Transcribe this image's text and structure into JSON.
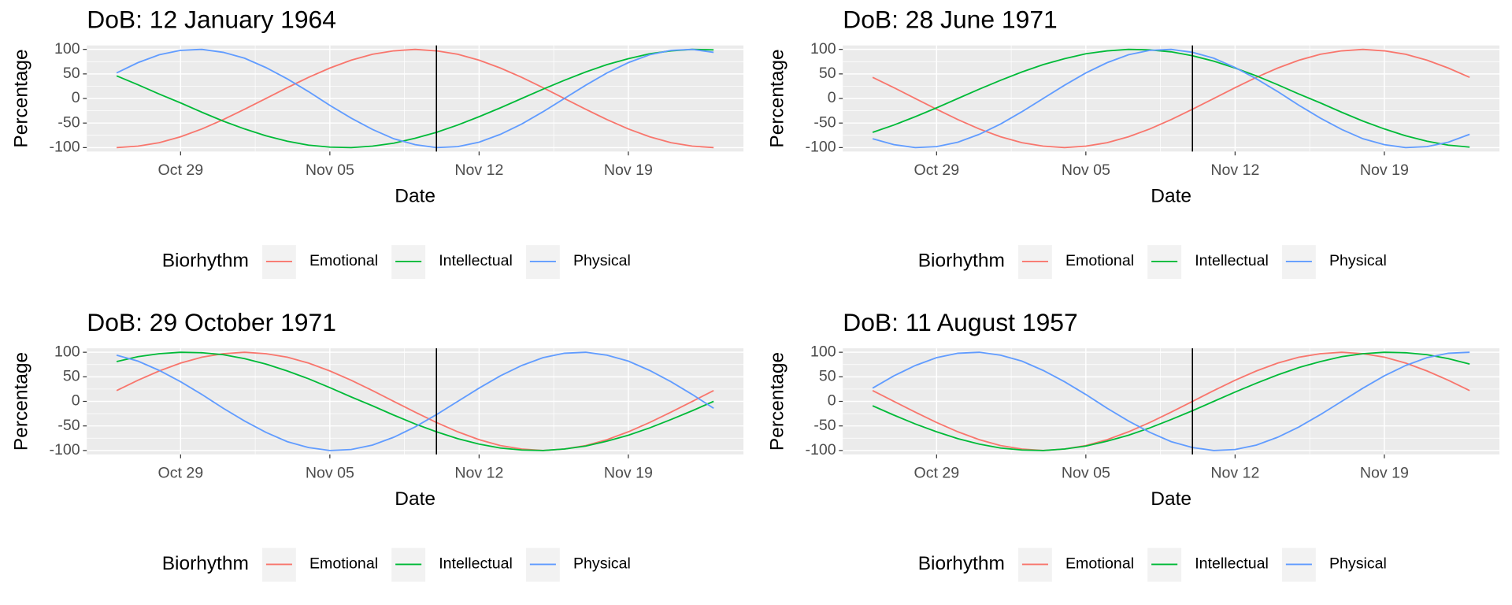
{
  "chart_data": [
    {
      "type": "line",
      "title": "DoB: 12 January 1964",
      "x_label": "Date",
      "y_label": "Percentage",
      "legend_title": "Biorhythm",
      "x": [
        "Oct 26",
        "Oct 27",
        "Oct 28",
        "Oct 29",
        "Oct 30",
        "Oct 31",
        "Nov 01",
        "Nov 02",
        "Nov 03",
        "Nov 04",
        "Nov 05",
        "Nov 06",
        "Nov 07",
        "Nov 08",
        "Nov 09",
        "Nov 10",
        "Nov 11",
        "Nov 12",
        "Nov 13",
        "Nov 14",
        "Nov 15",
        "Nov 16",
        "Nov 17",
        "Nov 18",
        "Nov 19",
        "Nov 20",
        "Nov 21",
        "Nov 22",
        "Nov 23"
      ],
      "xticks": [
        "Oct 29",
        "Nov 05",
        "Nov 12",
        "Nov 19"
      ],
      "vline": "Nov 10",
      "ylim": [
        -108,
        108
      ],
      "yticks": [
        -100,
        -50,
        0,
        50,
        100
      ],
      "grid": true,
      "legend": "bottom",
      "series": [
        {
          "name": "Emotional",
          "color": "#F8766D",
          "values": [
            -100,
            -97,
            -90,
            -78,
            -62,
            -43,
            -22,
            0,
            22,
            43,
            62,
            78,
            90,
            97,
            100,
            97,
            90,
            78,
            62,
            43,
            22,
            0,
            -22,
            -43,
            -62,
            -78,
            -90,
            -97,
            -100
          ]
        },
        {
          "name": "Intellectual",
          "color": "#00BA38",
          "values": [
            46,
            28,
            9,
            -9,
            -28,
            -46,
            -62,
            -76,
            -87,
            -95,
            -99,
            -100,
            -97,
            -91,
            -81,
            -69,
            -54,
            -37,
            -19,
            0,
            19,
            37,
            54,
            69,
            81,
            91,
            97,
            100,
            99
          ]
        },
        {
          "name": "Physical",
          "color": "#619CFF",
          "values": [
            52,
            73,
            89,
            98,
            100,
            94,
            82,
            63,
            40,
            14,
            -14,
            -40,
            -63,
            -82,
            -94,
            -100,
            -98,
            -89,
            -73,
            -52,
            -27,
            0,
            27,
            52,
            73,
            89,
            98,
            100,
            94
          ]
        }
      ]
    },
    {
      "type": "line",
      "title": "DoB: 28 June 1971",
      "x_label": "Date",
      "y_label": "Percentage",
      "legend_title": "Biorhythm",
      "x": [
        "Oct 26",
        "Oct 27",
        "Oct 28",
        "Oct 29",
        "Oct 30",
        "Oct 31",
        "Nov 01",
        "Nov 02",
        "Nov 03",
        "Nov 04",
        "Nov 05",
        "Nov 06",
        "Nov 07",
        "Nov 08",
        "Nov 09",
        "Nov 10",
        "Nov 11",
        "Nov 12",
        "Nov 13",
        "Nov 14",
        "Nov 15",
        "Nov 16",
        "Nov 17",
        "Nov 18",
        "Nov 19",
        "Nov 20",
        "Nov 21",
        "Nov 22",
        "Nov 23"
      ],
      "xticks": [
        "Oct 29",
        "Nov 05",
        "Nov 12",
        "Nov 19"
      ],
      "vline": "Nov 10",
      "ylim": [
        -108,
        108
      ],
      "yticks": [
        -100,
        -50,
        0,
        50,
        100
      ],
      "grid": true,
      "legend": "bottom",
      "series": [
        {
          "name": "Emotional",
          "color": "#F8766D",
          "values": [
            43,
            22,
            0,
            -22,
            -43,
            -62,
            -78,
            -90,
            -97,
            -100,
            -97,
            -90,
            -78,
            -62,
            -43,
            -22,
            0,
            22,
            43,
            62,
            78,
            90,
            97,
            100,
            97,
            90,
            78,
            62,
            43
          ]
        },
        {
          "name": "Intellectual",
          "color": "#00BA38",
          "values": [
            -69,
            -54,
            -37,
            -19,
            0,
            19,
            37,
            54,
            69,
            81,
            91,
            97,
            100,
            99,
            95,
            87,
            76,
            62,
            46,
            28,
            9,
            -9,
            -28,
            -46,
            -62,
            -76,
            -87,
            -95,
            -99
          ]
        },
        {
          "name": "Physical",
          "color": "#619CFF",
          "values": [
            -82,
            -94,
            -100,
            -98,
            -89,
            -73,
            -52,
            -27,
            0,
            27,
            52,
            73,
            89,
            98,
            100,
            94,
            82,
            63,
            40,
            14,
            -14,
            -40,
            -63,
            -82,
            -94,
            -100,
            -98,
            -89,
            -73
          ]
        }
      ]
    },
    {
      "type": "line",
      "title": "DoB: 29 October 1971",
      "x_label": "Date",
      "y_label": "Percentage",
      "legend_title": "Biorhythm",
      "x": [
        "Oct 26",
        "Oct 27",
        "Oct 28",
        "Oct 29",
        "Oct 30",
        "Oct 31",
        "Nov 01",
        "Nov 02",
        "Nov 03",
        "Nov 04",
        "Nov 05",
        "Nov 06",
        "Nov 07",
        "Nov 08",
        "Nov 09",
        "Nov 10",
        "Nov 11",
        "Nov 12",
        "Nov 13",
        "Nov 14",
        "Nov 15",
        "Nov 16",
        "Nov 17",
        "Nov 18",
        "Nov 19",
        "Nov 20",
        "Nov 21",
        "Nov 22",
        "Nov 23"
      ],
      "xticks": [
        "Oct 29",
        "Nov 05",
        "Nov 12",
        "Nov 19"
      ],
      "vline": "Nov 10",
      "ylim": [
        -108,
        108
      ],
      "yticks": [
        -100,
        -50,
        0,
        50,
        100
      ],
      "grid": true,
      "legend": "bottom",
      "series": [
        {
          "name": "Emotional",
          "color": "#F8766D",
          "values": [
            22,
            43,
            62,
            78,
            90,
            97,
            100,
            97,
            90,
            78,
            62,
            43,
            22,
            0,
            -22,
            -43,
            -62,
            -78,
            -90,
            -97,
            -100,
            -97,
            -90,
            -78,
            -62,
            -43,
            -22,
            0,
            22
          ]
        },
        {
          "name": "Intellectual",
          "color": "#00BA38",
          "values": [
            81,
            91,
            97,
            100,
            99,
            95,
            87,
            76,
            62,
            46,
            28,
            9,
            -9,
            -28,
            -46,
            -62,
            -76,
            -87,
            -95,
            -99,
            -100,
            -97,
            -91,
            -81,
            -69,
            -54,
            -37,
            -19,
            0
          ]
        },
        {
          "name": "Physical",
          "color": "#619CFF",
          "values": [
            94,
            82,
            63,
            40,
            14,
            -14,
            -40,
            -63,
            -82,
            -94,
            -100,
            -98,
            -89,
            -73,
            -52,
            -27,
            0,
            27,
            52,
            73,
            89,
            98,
            100,
            94,
            82,
            63,
            40,
            14,
            -14
          ]
        }
      ]
    },
    {
      "type": "line",
      "title": "DoB: 11 August 1957",
      "x_label": "Date",
      "y_label": "Percentage",
      "legend_title": "Biorhythm",
      "x": [
        "Oct 26",
        "Oct 27",
        "Oct 28",
        "Oct 29",
        "Oct 30",
        "Oct 31",
        "Nov 01",
        "Nov 02",
        "Nov 03",
        "Nov 04",
        "Nov 05",
        "Nov 06",
        "Nov 07",
        "Nov 08",
        "Nov 09",
        "Nov 10",
        "Nov 11",
        "Nov 12",
        "Nov 13",
        "Nov 14",
        "Nov 15",
        "Nov 16",
        "Nov 17",
        "Nov 18",
        "Nov 19",
        "Nov 20",
        "Nov 21",
        "Nov 22",
        "Nov 23"
      ],
      "xticks": [
        "Oct 29",
        "Nov 05",
        "Nov 12",
        "Nov 19"
      ],
      "vline": "Nov 10",
      "ylim": [
        -108,
        108
      ],
      "yticks": [
        -100,
        -50,
        0,
        50,
        100
      ],
      "grid": true,
      "legend": "bottom",
      "series": [
        {
          "name": "Emotional",
          "color": "#F8766D",
          "values": [
            22,
            0,
            -22,
            -43,
            -62,
            -78,
            -90,
            -97,
            -100,
            -97,
            -90,
            -78,
            -62,
            -43,
            -22,
            0,
            22,
            43,
            62,
            78,
            90,
            97,
            100,
            97,
            90,
            78,
            62,
            43,
            22
          ]
        },
        {
          "name": "Intellectual",
          "color": "#00BA38",
          "values": [
            -9,
            -28,
            -46,
            -62,
            -76,
            -87,
            -95,
            -99,
            -100,
            -97,
            -91,
            -81,
            -69,
            -54,
            -37,
            -19,
            0,
            19,
            37,
            54,
            69,
            81,
            91,
            97,
            100,
            99,
            95,
            87,
            76
          ]
        },
        {
          "name": "Physical",
          "color": "#619CFF",
          "values": [
            27,
            52,
            73,
            89,
            98,
            100,
            94,
            82,
            63,
            40,
            14,
            -14,
            -40,
            -63,
            -82,
            -94,
            -100,
            -98,
            -89,
            -73,
            -52,
            -27,
            0,
            27,
            52,
            73,
            89,
            98,
            100
          ]
        }
      ]
    }
  ]
}
